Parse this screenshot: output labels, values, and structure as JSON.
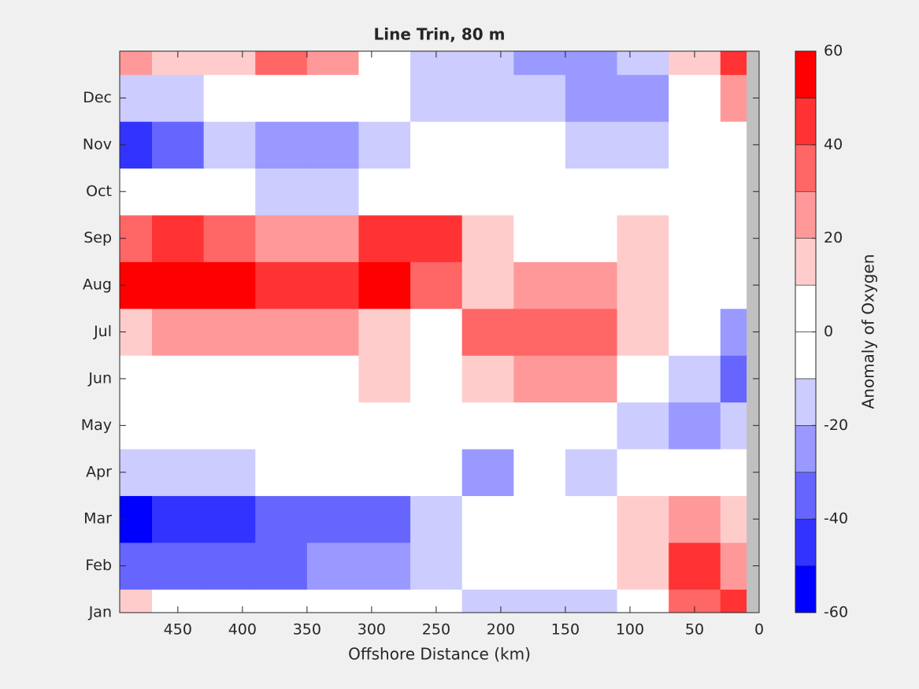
{
  "chart_data": {
    "type": "contourf",
    "title": "Line Trin, 80 m",
    "x_label": "Offshore Distance (km)",
    "colorbar_label": "Anomaly of Oxygen",
    "x": [
      490,
      450,
      410,
      370,
      330,
      290,
      250,
      210,
      170,
      130,
      90,
      50,
      10
    ],
    "y": [
      1,
      2,
      3,
      4,
      5,
      6,
      7,
      8,
      9,
      10,
      11,
      12,
      13
    ],
    "z": [
      [
        10,
        5,
        0,
        0,
        0,
        -5,
        -10,
        -15,
        -20,
        -15,
        0,
        30,
        40
      ],
      [
        -35,
        -35,
        -35,
        -35,
        -30,
        -30,
        -15,
        0,
        0,
        -5,
        15,
        40,
        20
      ],
      [
        -55,
        -45,
        -45,
        -40,
        -35,
        -35,
        -20,
        0,
        0,
        0,
        10,
        20,
        10
      ],
      [
        -20,
        -20,
        -15,
        -10,
        -10,
        -10,
        -10,
        -25,
        -10,
        -15,
        -10,
        -10,
        0
      ],
      [
        0,
        0,
        -5,
        0,
        0,
        0,
        0,
        0,
        0,
        -10,
        -15,
        -25,
        -15
      ],
      [
        0,
        0,
        5,
        0,
        5,
        15,
        0,
        15,
        20,
        20,
        0,
        -15,
        -35
      ],
      [
        15,
        20,
        25,
        25,
        25,
        15,
        0,
        30,
        35,
        35,
        10,
        -10,
        -30
      ],
      [
        55,
        55,
        50,
        40,
        40,
        55,
        30,
        15,
        20,
        20,
        15,
        -5,
        -10
      ],
      [
        35,
        40,
        35,
        20,
        25,
        45,
        45,
        10,
        0,
        0,
        10,
        -10,
        0
      ],
      [
        5,
        0,
        -10,
        -15,
        -20,
        -10,
        0,
        0,
        0,
        0,
        0,
        0,
        -10
      ],
      [
        -45,
        -35,
        -15,
        -25,
        -25,
        -15,
        -10,
        0,
        0,
        -20,
        -15,
        0,
        0
      ],
      [
        -20,
        -15,
        -10,
        0,
        -5,
        -10,
        -15,
        -15,
        -15,
        -25,
        -25,
        0,
        20
      ],
      [
        25,
        15,
        10,
        30,
        20,
        0,
        -15,
        -15,
        -30,
        -30,
        -20,
        10,
        40
      ]
    ],
    "xlim": [
      495,
      0
    ],
    "ylim": [
      1,
      13
    ],
    "xticks": [
      450,
      400,
      350,
      300,
      250,
      200,
      150,
      100,
      50,
      0
    ],
    "yticks": [
      {
        "value": 1,
        "label": "Jan"
      },
      {
        "value": 2,
        "label": "Feb"
      },
      {
        "value": 3,
        "label": "Mar"
      },
      {
        "value": 4,
        "label": "Apr"
      },
      {
        "value": 5,
        "label": "May"
      },
      {
        "value": 6,
        "label": "Jun"
      },
      {
        "value": 7,
        "label": "Jul"
      },
      {
        "value": 8,
        "label": "Aug"
      },
      {
        "value": 9,
        "label": "Sep"
      },
      {
        "value": 10,
        "label": "Oct"
      },
      {
        "value": 11,
        "label": "Nov"
      },
      {
        "value": 12,
        "label": "Dec"
      }
    ],
    "levels": [
      -60,
      -50,
      -40,
      -30,
      -20,
      -10,
      0,
      10,
      20,
      30,
      40,
      50,
      60
    ],
    "colors": [
      "#0000ff",
      "#3333ff",
      "#6666ff",
      "#9999ff",
      "#ccccff",
      "#ffffff",
      "#ffffff",
      "#ffcccc",
      "#ff9999",
      "#ff6666",
      "#ff3333",
      "#ff0000"
    ],
    "clim": [
      -60,
      60
    ],
    "cticks": [
      -60,
      -40,
      -20,
      0,
      20,
      40,
      60
    ]
  }
}
